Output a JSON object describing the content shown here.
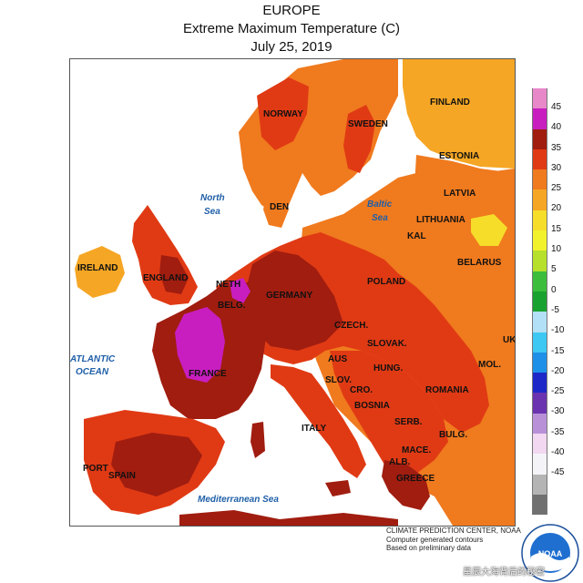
{
  "title": {
    "line1": "EUROPE",
    "line2": "Extreme Maximum Temperature (C)",
    "line3": "July 25, 2019"
  },
  "legend": {
    "entries": [
      {
        "value": "45",
        "color": "#e888c8"
      },
      {
        "value": "40",
        "color": "#c81ec0"
      },
      {
        "value": "35",
        "color": "#a01d10"
      },
      {
        "value": "30",
        "color": "#e03a14"
      },
      {
        "value": "25",
        "color": "#f07a1e"
      },
      {
        "value": "20",
        "color": "#f5a624"
      },
      {
        "value": "15",
        "color": "#f5dd2a"
      },
      {
        "value": "10",
        "color": "#f2f22c"
      },
      {
        "value": "5",
        "color": "#b6e02c"
      },
      {
        "value": "0",
        "color": "#3cbe3c"
      },
      {
        "value": "-5",
        "color": "#1aa230"
      },
      {
        "value": "-10",
        "color": "#b2e0f6"
      },
      {
        "value": "-15",
        "color": "#3cc8f2"
      },
      {
        "value": "-20",
        "color": "#1e90e8"
      },
      {
        "value": "-25",
        "color": "#1e28c8"
      },
      {
        "value": "-30",
        "color": "#6a34b0"
      },
      {
        "value": "-35",
        "color": "#b890d8"
      },
      {
        "value": "-40",
        "color": "#f2d8f0"
      },
      {
        "value": "-45",
        "color": "#f4f4f8"
      },
      {
        "value": "",
        "color": "#b4b4b4"
      },
      {
        "value": "",
        "color": "#707070"
      }
    ]
  },
  "countries": {
    "norway": "NORWAY",
    "sweden": "SWEDEN",
    "finland": "FINLAND",
    "estonia": "ESTONIA",
    "latvia": "LATVIA",
    "lithuania": "LITHUANIA",
    "kal": "KAL",
    "belarus": "BELARUS",
    "ireland": "IRELAND",
    "england": "ENGLAND",
    "neth": "NETH",
    "belg": "BELG.",
    "den": "DEN",
    "germany": "GERMANY",
    "poland": "POLAND",
    "czech": "CZECH.",
    "slovak": "SLOVAK.",
    "uk": "UK",
    "france": "FRANCE",
    "aus": "AUS",
    "hung": "HUNG.",
    "mol": "MOL.",
    "slov": "SLOV.",
    "cro": "CRO.",
    "bosnia": "BOSNIA",
    "romania": "ROMANIA",
    "serb": "SERB.",
    "bulg": "BULG.",
    "italy": "ITALY",
    "mace": "MACE.",
    "alb": "ALB.",
    "greece": "GREECE",
    "port": "PORT",
    "spain": "SPAIN"
  },
  "seas": {
    "north_sea": [
      "North",
      "Sea"
    ],
    "baltic_sea": [
      "Baltic",
      "Sea"
    ],
    "atlantic_ocean": [
      "ATLANTIC",
      "OCEAN"
    ],
    "mediterranean_sea": "Mediterranean Sea"
  },
  "credit": {
    "line1": "CLIMATE PREDICTION CENTER, NOAA",
    "line2": "Computer generated contours",
    "line3": "Based on preliminary data"
  },
  "logo": {
    "text": "NOAA",
    "ring_text": "NATIONAL OCEANIC AND ATMOSPHERIC ADMINISTRATION"
  },
  "watermark": "星辰大海背后的秘密"
}
